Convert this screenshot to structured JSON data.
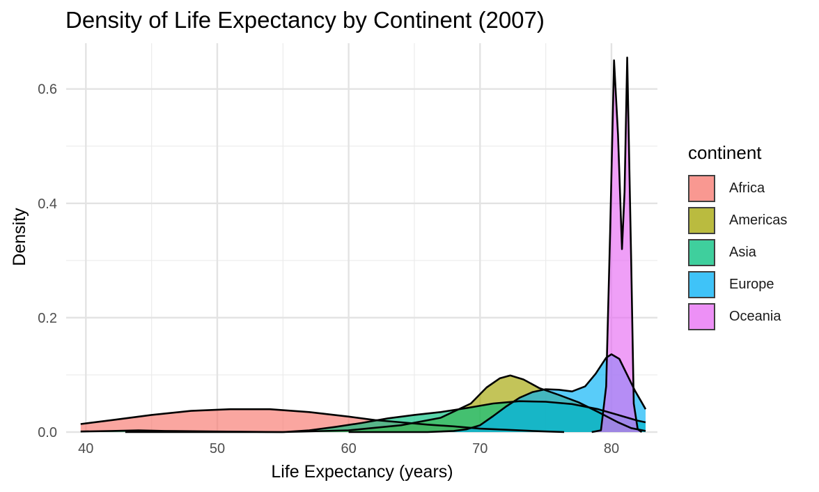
{
  "chart_data": {
    "type": "area",
    "title": "Density of Life Expectancy by Continent (2007)",
    "xlabel": "Life Expectancy (years)",
    "ylabel": "Density",
    "xlim": [
      38.5,
      83.5
    ],
    "ylim": [
      0,
      0.68
    ],
    "x_ticks": [
      40,
      50,
      60,
      70,
      80
    ],
    "y_ticks": [
      0.0,
      0.2,
      0.4,
      0.6
    ],
    "y_tick_labels": [
      "0.0",
      "0.2",
      "0.4",
      "0.6"
    ],
    "grid": true,
    "legend_title": "continent",
    "legend_position": "right",
    "series": [
      {
        "name": "Africa",
        "color": "#F8766D",
        "points": [
          [
            39.6,
            0.014
          ],
          [
            42,
            0.021
          ],
          [
            45,
            0.03
          ],
          [
            48,
            0.037
          ],
          [
            51,
            0.04
          ],
          [
            54,
            0.04
          ],
          [
            57,
            0.035
          ],
          [
            60,
            0.027
          ],
          [
            62,
            0.021
          ],
          [
            64,
            0.017
          ],
          [
            66,
            0.013
          ],
          [
            68,
            0.01
          ],
          [
            70,
            0.006
          ],
          [
            72,
            0.004
          ],
          [
            74,
            0.002
          ],
          [
            76.4,
            0.0
          ]
        ]
      },
      {
        "name": "Americas",
        "color": "#A3A500",
        "points": [
          [
            43.0,
            0.0
          ],
          [
            55.0,
            0.0
          ],
          [
            60,
            0.003
          ],
          [
            64,
            0.012
          ],
          [
            67,
            0.025
          ],
          [
            69.3,
            0.05
          ],
          [
            70.5,
            0.078
          ],
          [
            71.5,
            0.094
          ],
          [
            72.3,
            0.099
          ],
          [
            73.3,
            0.092
          ],
          [
            74.5,
            0.077
          ],
          [
            76,
            0.065
          ],
          [
            77.5,
            0.052
          ],
          [
            79,
            0.035
          ],
          [
            80.5,
            0.017
          ],
          [
            81.5,
            0.007
          ],
          [
            82.6,
            0.002
          ]
        ]
      },
      {
        "name": "Asia",
        "color": "#00BF7D",
        "points": [
          [
            39.6,
            0.001
          ],
          [
            42,
            0.002
          ],
          [
            44,
            0.003
          ],
          [
            46,
            0.002
          ],
          [
            50,
            0.001
          ],
          [
            55,
            0.0
          ],
          [
            57,
            0.003
          ],
          [
            59,
            0.009
          ],
          [
            61,
            0.016
          ],
          [
            63,
            0.024
          ],
          [
            65,
            0.03
          ],
          [
            67,
            0.035
          ],
          [
            69,
            0.042
          ],
          [
            71,
            0.05
          ],
          [
            73,
            0.054
          ],
          [
            75,
            0.053
          ],
          [
            77,
            0.049
          ],
          [
            79,
            0.04
          ],
          [
            80.5,
            0.03
          ],
          [
            82,
            0.02
          ],
          [
            82.6,
            0.017
          ]
        ]
      },
      {
        "name": "Europe",
        "color": "#00B0F6",
        "points": [
          [
            60,
            0.0
          ],
          [
            66,
            0.0
          ],
          [
            68,
            0.002
          ],
          [
            69,
            0.005
          ],
          [
            70,
            0.012
          ],
          [
            71,
            0.028
          ],
          [
            72,
            0.045
          ],
          [
            73,
            0.06
          ],
          [
            74,
            0.07
          ],
          [
            75,
            0.075
          ],
          [
            76,
            0.074
          ],
          [
            77,
            0.071
          ],
          [
            78,
            0.08
          ],
          [
            78.8,
            0.102
          ],
          [
            79.6,
            0.13
          ],
          [
            80.0,
            0.136
          ],
          [
            80.6,
            0.128
          ],
          [
            81.2,
            0.1
          ],
          [
            81.8,
            0.072
          ],
          [
            82.3,
            0.052
          ],
          [
            82.6,
            0.04
          ]
        ]
      },
      {
        "name": "Oceania",
        "color": "#E76BF3",
        "points": [
          [
            78.5,
            0.0
          ],
          [
            79.2,
            0.003
          ],
          [
            79.6,
            0.08
          ],
          [
            79.9,
            0.35
          ],
          [
            80.2,
            0.65
          ],
          [
            80.5,
            0.52
          ],
          [
            80.8,
            0.32
          ],
          [
            81.0,
            0.42
          ],
          [
            81.2,
            0.655
          ],
          [
            81.5,
            0.3
          ],
          [
            81.7,
            0.05
          ],
          [
            82.0,
            0.005
          ],
          [
            82.3,
            0.0
          ]
        ]
      }
    ]
  }
}
